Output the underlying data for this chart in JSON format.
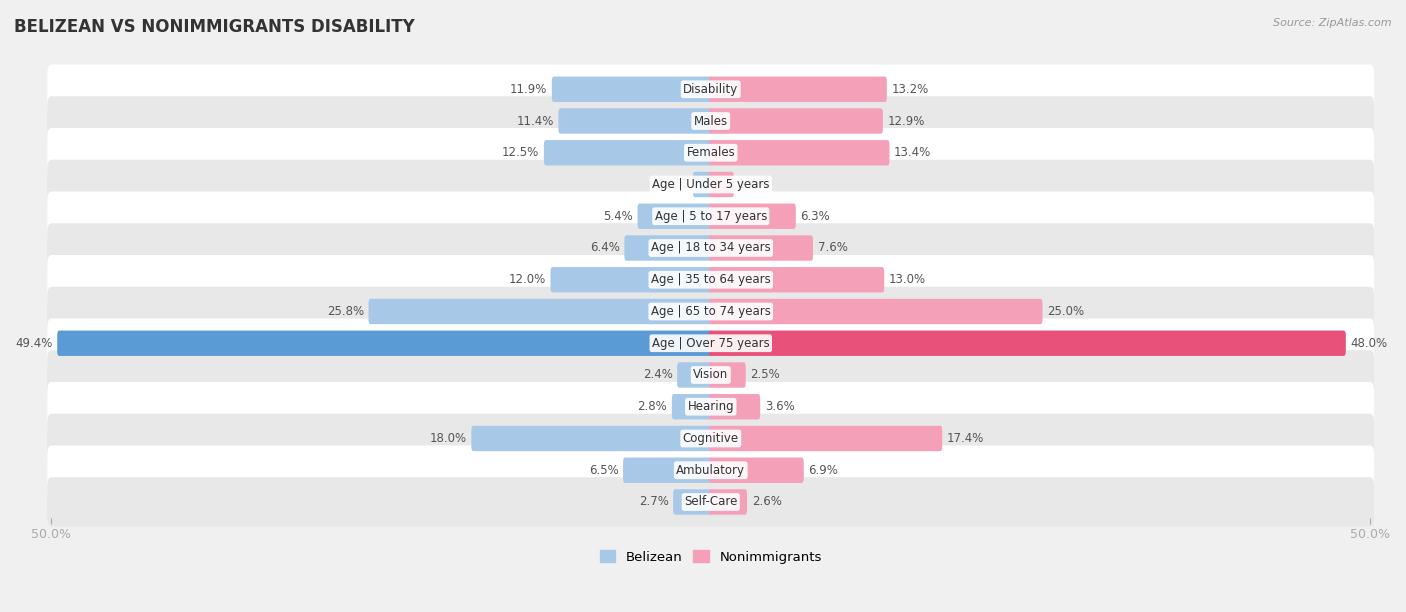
{
  "title": "BELIZEAN VS NONIMMIGRANTS DISABILITY",
  "source": "Source: ZipAtlas.com",
  "categories": [
    "Disability",
    "Males",
    "Females",
    "Age | Under 5 years",
    "Age | 5 to 17 years",
    "Age | 18 to 34 years",
    "Age | 35 to 64 years",
    "Age | 65 to 74 years",
    "Age | Over 75 years",
    "Vision",
    "Hearing",
    "Cognitive",
    "Ambulatory",
    "Self-Care"
  ],
  "belizean": [
    11.9,
    11.4,
    12.5,
    1.2,
    5.4,
    6.4,
    12.0,
    25.8,
    49.4,
    2.4,
    2.8,
    18.0,
    6.5,
    2.7
  ],
  "nonimmigrants": [
    13.2,
    12.9,
    13.4,
    1.6,
    6.3,
    7.6,
    13.0,
    25.0,
    48.0,
    2.5,
    3.6,
    17.4,
    6.9,
    2.6
  ],
  "belizean_color": "#A8C8E8",
  "nonimmigrants_color": "#F4A0B8",
  "belizean_color_highlight": "#5B9BD5",
  "nonimmigrants_color_highlight": "#E8527A",
  "axis_limit": 50.0,
  "background_color": "#f0f0f0",
  "row_bg_light": "#ffffff",
  "row_bg_dark": "#e8e8e8",
  "label_fontsize": 8.5,
  "cat_fontsize": 8.5
}
